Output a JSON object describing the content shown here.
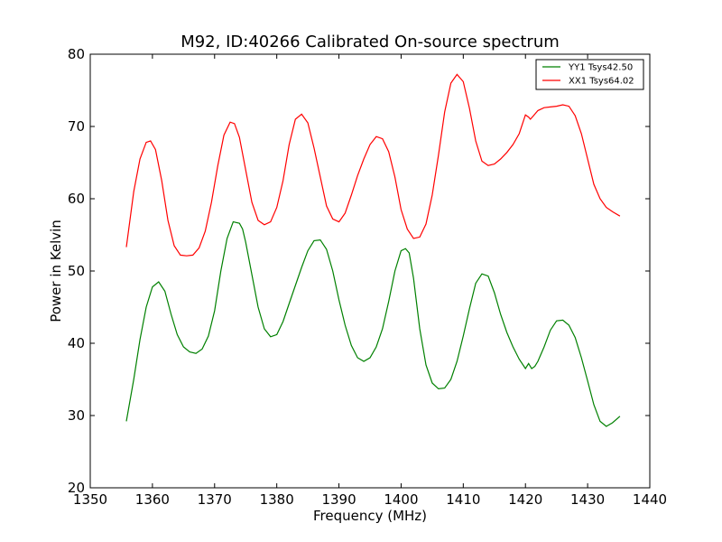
{
  "chart_data": {
    "type": "line",
    "title": "M92, ID:40266 Calibrated On-source spectrum",
    "xlabel": "Frequency (MHz)",
    "ylabel": "Power in Kelvin",
    "xlim": [
      1350,
      1440
    ],
    "ylim": [
      20,
      80
    ],
    "xticks": [
      1350,
      1360,
      1370,
      1380,
      1390,
      1400,
      1410,
      1420,
      1430,
      1440
    ],
    "yticks": [
      20,
      30,
      40,
      50,
      60,
      70,
      80
    ],
    "grid": false,
    "legend_position": "top-right",
    "series": [
      {
        "name": "YY1 Tsys42.50",
        "color": "#008000",
        "x": [
          1355.8,
          1357,
          1358,
          1359,
          1360,
          1361,
          1362,
          1363,
          1364,
          1365,
          1366,
          1367,
          1368,
          1369,
          1370,
          1371,
          1372,
          1373,
          1374,
          1374.5,
          1375,
          1376,
          1377,
          1378,
          1379,
          1380,
          1381,
          1382,
          1383,
          1384,
          1385,
          1386,
          1387,
          1388,
          1389,
          1390,
          1391,
          1392,
          1393,
          1394,
          1395,
          1396,
          1397,
          1398,
          1399,
          1400,
          1400.7,
          1401.3,
          1402,
          1403,
          1404,
          1405,
          1406,
          1407,
          1408,
          1409,
          1410,
          1411,
          1412,
          1413,
          1414,
          1415,
          1416,
          1417,
          1418,
          1419,
          1420,
          1420.5,
          1421,
          1421.5,
          1422,
          1423,
          1424,
          1425,
          1426,
          1427,
          1428,
          1429,
          1430,
          1431,
          1432,
          1433,
          1434,
          1435.2
        ],
        "y": [
          29.2,
          35,
          40.5,
          45,
          47.8,
          48.5,
          47.2,
          44,
          41.2,
          39.5,
          38.8,
          38.6,
          39.2,
          41,
          44.5,
          50,
          54.5,
          56.8,
          56.6,
          55.8,
          54,
          49.5,
          45,
          42,
          40.9,
          41.2,
          43,
          45.5,
          48,
          50.5,
          52.8,
          54.2,
          54.3,
          53,
          50,
          46,
          42.5,
          39.7,
          38,
          37.5,
          38,
          39.5,
          42,
          45.8,
          50,
          52.8,
          53.1,
          52.5,
          49,
          42,
          37,
          34.5,
          33.7,
          33.8,
          35,
          37.5,
          41,
          44.8,
          48.3,
          49.6,
          49.3,
          47,
          44,
          41.5,
          39.5,
          37.8,
          36.5,
          37.2,
          36.5,
          36.8,
          37.5,
          39.5,
          41.8,
          43.1,
          43.2,
          42.5,
          40.8,
          38,
          34.8,
          31.5,
          29.2,
          28.5,
          29,
          29.9
        ]
      },
      {
        "name": "XX1 Tsys64.02",
        "color": "#ff0000",
        "x": [
          1355.8,
          1357,
          1358,
          1359,
          1359.7,
          1360.5,
          1361.5,
          1362.5,
          1363.5,
          1364.5,
          1365.5,
          1366.5,
          1367.5,
          1368.5,
          1369.5,
          1370.5,
          1371.5,
          1372.5,
          1373.2,
          1374,
          1375,
          1376,
          1377,
          1378,
          1379,
          1380,
          1381,
          1382,
          1383,
          1384,
          1385,
          1386,
          1387,
          1388,
          1389,
          1390,
          1391,
          1392,
          1393,
          1394,
          1395,
          1396,
          1397,
          1398,
          1399,
          1400,
          1401,
          1402,
          1403,
          1404,
          1405,
          1406,
          1407,
          1408,
          1409,
          1410,
          1411,
          1412,
          1413,
          1414,
          1415,
          1416,
          1417,
          1418,
          1419,
          1420,
          1420.5,
          1420.8,
          1421.3,
          1422,
          1423,
          1424,
          1425,
          1426,
          1427,
          1428,
          1429,
          1430,
          1431,
          1432,
          1433,
          1434,
          1435.2
        ],
        "y": [
          53.3,
          61,
          65.5,
          67.8,
          68,
          66.8,
          62.5,
          57,
          53.5,
          52.2,
          52.1,
          52.2,
          53.2,
          55.5,
          59.5,
          64.5,
          68.8,
          70.6,
          70.4,
          68.5,
          64,
          59.5,
          57,
          56.4,
          56.8,
          58.8,
          62.5,
          67.5,
          71,
          71.7,
          70.5,
          67,
          63,
          59,
          57.2,
          56.8,
          58,
          60.5,
          63.2,
          65.5,
          67.5,
          68.6,
          68.3,
          66.5,
          63,
          58.5,
          55.8,
          54.5,
          54.7,
          56.5,
          60.5,
          66,
          72,
          76,
          77.2,
          76.2,
          72.5,
          68,
          65.2,
          64.6,
          64.8,
          65.5,
          66.4,
          67.5,
          69,
          71.6,
          71.3,
          71,
          71.5,
          72.2,
          72.6,
          72.7,
          72.8,
          73,
          72.8,
          71.5,
          69,
          65.5,
          62,
          60,
          58.8,
          58.2,
          57.6
        ]
      }
    ]
  }
}
